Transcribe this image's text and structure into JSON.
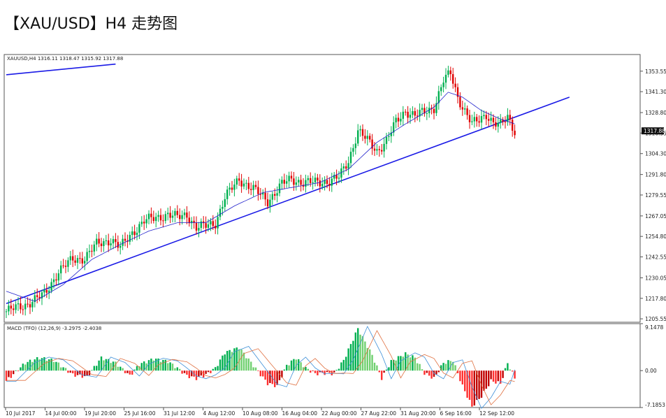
{
  "title": "【XAU/USD】H4 走势图",
  "chart_data": {
    "type": "candlestick",
    "main_header": "XAUUSD,H4  1316.11 1318.47 1315.92 1317.88",
    "indicator_header": "MACD (TFO) (12,26,9) -3.2975 -2.4038",
    "current_price_label": "1317.88",
    "y_ticks": [
      "1353.55",
      "1341.30",
      "1328.80",
      "1316.55",
      "1304.30",
      "1291.80",
      "1279.55",
      "1267.05",
      "1254.80",
      "1242.55",
      "1230.05",
      "1217.80",
      "1205.55"
    ],
    "y_range": [
      1203.5,
      1363.5
    ],
    "macd_ticks": [
      "9.1478",
      "0.00",
      "-7.1853"
    ],
    "macd_range": [
      -7.1853,
      9.1478
    ],
    "x_ticks": [
      "10 Jul 2017",
      "14 Jul 00:00",
      "19 Jul 20:00",
      "25 Jul 16:00",
      "31 Jul 12:00",
      "4 Aug 12:00",
      "10 Aug 08:00",
      "16 Aug 04:00",
      "22 Aug 00:00",
      "27 Aug 22:00",
      "31 Aug 20:00",
      "6 Sep 16:00",
      "12 Sep 12:00"
    ],
    "price_anchors": [
      [
        0,
        1210
      ],
      [
        8,
        1214
      ],
      [
        16,
        1220
      ],
      [
        22,
        1234
      ],
      [
        28,
        1241
      ],
      [
        33,
        1242
      ],
      [
        38,
        1250
      ],
      [
        44,
        1253
      ],
      [
        48,
        1248
      ],
      [
        53,
        1257
      ],
      [
        58,
        1264
      ],
      [
        63,
        1266
      ],
      [
        68,
        1268
      ],
      [
        72,
        1266
      ],
      [
        76,
        1268
      ],
      [
        80,
        1260
      ],
      [
        84,
        1261
      ],
      [
        88,
        1263
      ],
      [
        92,
        1278
      ],
      [
        98,
        1289
      ],
      [
        104,
        1283
      ],
      [
        110,
        1276
      ],
      [
        116,
        1286
      ],
      [
        120,
        1289
      ],
      [
        125,
        1287
      ],
      [
        130,
        1287
      ],
      [
        136,
        1288
      ],
      [
        140,
        1290
      ],
      [
        144,
        1300
      ],
      [
        148,
        1318
      ],
      [
        152,
        1312
      ],
      [
        156,
        1306
      ],
      [
        160,
        1312
      ],
      [
        164,
        1323
      ],
      [
        168,
        1330
      ],
      [
        172,
        1327
      ],
      [
        176,
        1329
      ],
      [
        180,
        1332
      ],
      [
        184,
        1348
      ],
      [
        187,
        1352
      ],
      [
        190,
        1338
      ],
      [
        193,
        1330
      ],
      [
        196,
        1322
      ],
      [
        199,
        1324
      ],
      [
        202,
        1328
      ],
      [
        205,
        1323
      ],
      [
        208,
        1321
      ],
      [
        211,
        1326
      ],
      [
        214,
        1318
      ]
    ],
    "ma_anchors": [
      [
        0,
        1222
      ],
      [
        12,
        1216
      ],
      [
        24,
        1226
      ],
      [
        36,
        1241
      ],
      [
        48,
        1250
      ],
      [
        60,
        1258
      ],
      [
        72,
        1263
      ],
      [
        84,
        1263
      ],
      [
        96,
        1273
      ],
      [
        108,
        1281
      ],
      [
        120,
        1284
      ],
      [
        132,
        1287
      ],
      [
        144,
        1295
      ],
      [
        156,
        1311
      ],
      [
        168,
        1322
      ],
      [
        180,
        1332
      ],
      [
        186,
        1341
      ],
      [
        192,
        1338
      ],
      [
        200,
        1330
      ],
      [
        208,
        1325
      ],
      [
        214,
        1322
      ]
    ],
    "macd_anchors": [
      [
        0,
        -2.0
      ],
      [
        8,
        1.5
      ],
      [
        14,
        2.5
      ],
      [
        20,
        2.0
      ],
      [
        28,
        -0.8
      ],
      [
        34,
        -1.2
      ],
      [
        40,
        2.5
      ],
      [
        46,
        1.5
      ],
      [
        52,
        -1.0
      ],
      [
        56,
        1.2
      ],
      [
        62,
        2.3
      ],
      [
        68,
        1.8
      ],
      [
        72,
        0.5
      ],
      [
        76,
        -1.0
      ],
      [
        80,
        -1.5
      ],
      [
        84,
        -0.8
      ],
      [
        88,
        0.5
      ],
      [
        92,
        3.5
      ],
      [
        98,
        4.5
      ],
      [
        104,
        1.0
      ],
      [
        110,
        -2.5
      ],
      [
        114,
        -3.0
      ],
      [
        118,
        1.0
      ],
      [
        122,
        2.5
      ],
      [
        126,
        0.5
      ],
      [
        130,
        -0.6
      ],
      [
        134,
        -0.5
      ],
      [
        138,
        -0.6
      ],
      [
        142,
        2.0
      ],
      [
        148,
        8.2
      ],
      [
        154,
        3.0
      ],
      [
        158,
        -1.5
      ],
      [
        162,
        1.8
      ],
      [
        168,
        3.3
      ],
      [
        172,
        2.5
      ],
      [
        176,
        -0.5
      ],
      [
        180,
        -1.5
      ],
      [
        184,
        1.5
      ],
      [
        188,
        2.0
      ],
      [
        192,
        -3.0
      ],
      [
        196,
        -7.0
      ],
      [
        200,
        -5.0
      ],
      [
        204,
        -2.0
      ],
      [
        208,
        -2.5
      ],
      [
        211,
        1.5
      ],
      [
        214,
        -1.5
      ]
    ],
    "trendlines": [
      {
        "color": "#1a1ae6",
        "from": [
          0,
          1214.7
        ],
        "to": [
          237,
          1338
        ]
      },
      {
        "color": "#1a1ae6",
        "from": [
          0,
          1351.4
        ],
        "to": [
          46,
          1357.8
        ]
      }
    ],
    "colors": {
      "up": "#00b050",
      "down": "#e00000",
      "hist_up": "#00b050",
      "hist_down": "#c00000",
      "macd_line": "#3d8fd8",
      "signal_line": "#e07040",
      "ma": "#2222cc"
    }
  }
}
